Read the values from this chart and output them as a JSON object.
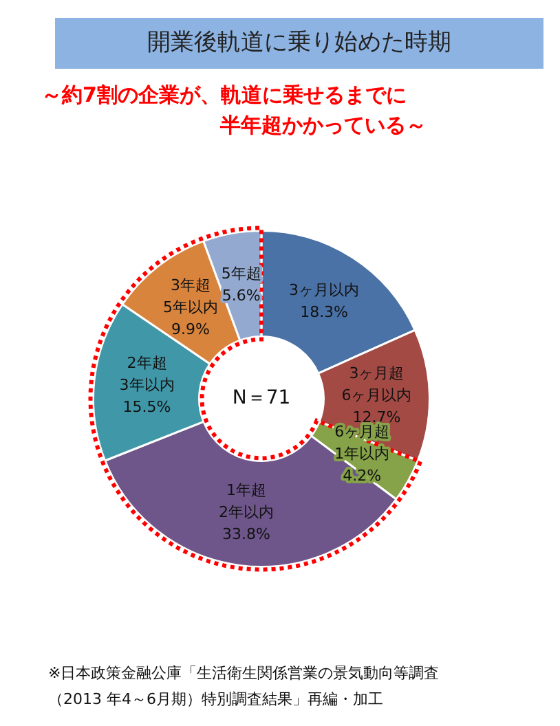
{
  "chart_data": {
    "type": "donut",
    "title": "開業後軌道に乗り始めた時期",
    "subtitle": "～約7割の企業が、軌道に乗せるまでに半年超かかっている～",
    "categories": [
      "3ヶ月以内",
      "3ヶ月超 6ヶ月以内",
      "6ヶ月超 1年以内",
      "1年超 2年以内",
      "2年超 3年以内",
      "3年超 5年以内",
      "5年超"
    ],
    "values": [
      18.3,
      12.7,
      4.2,
      33.8,
      15.5,
      9.9,
      5.6
    ],
    "value_labels": [
      "18.3%",
      "12.7%",
      "4.2%",
      "33.8%",
      "15.5%",
      "9.9%",
      "5.6%"
    ],
    "colors": [
      "#4a72a6",
      "#a34a45",
      "#86a349",
      "#6e568a",
      "#3f97a8",
      "#d9843d",
      "#93a9cf"
    ],
    "annotations": [
      "N＝71",
      "※日本政策金融公庫「生活衛生関係営業の景気動向等調査（2013 年4～6月期）特別調査結果」再編・加工"
    ],
    "legend": false
  }
}
